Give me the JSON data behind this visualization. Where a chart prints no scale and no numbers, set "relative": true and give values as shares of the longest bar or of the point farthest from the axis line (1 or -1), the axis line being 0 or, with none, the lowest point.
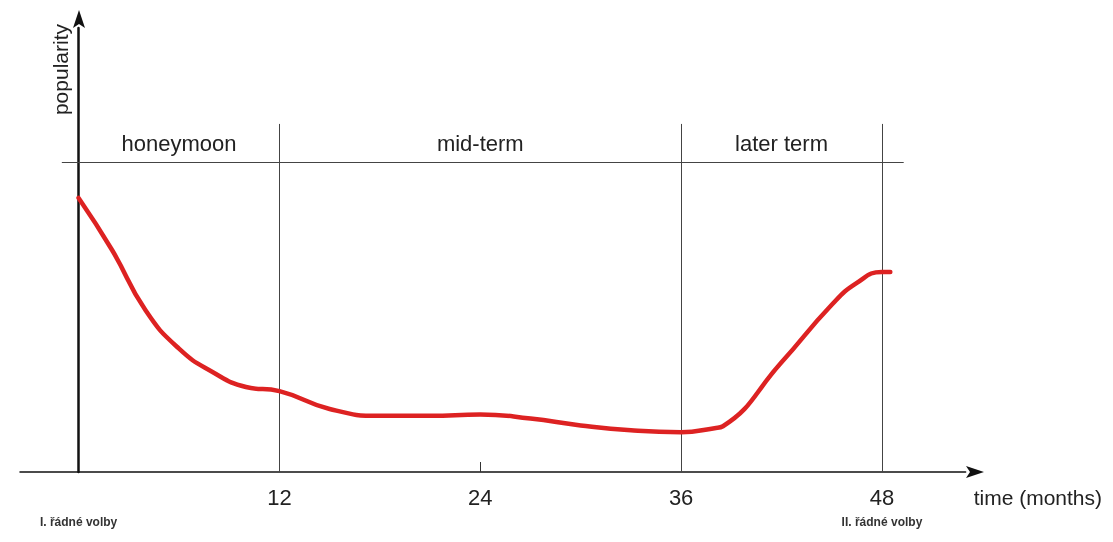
{
  "chart_data": {
    "type": "line",
    "relative": true,
    "xlabel": "time (months)",
    "ylabel": "popularity",
    "xlim": [
      -3.5,
      53
    ],
    "xticks": [
      12,
      24,
      36,
      48
    ],
    "series": [
      {
        "color": "#dd2222",
        "x": [
          0,
          2,
          4,
          6,
          8,
          10,
          12,
          15,
          18,
          21,
          24,
          27,
          30,
          33,
          36,
          38,
          38.5,
          42,
          45,
          46.5,
          48,
          48.5
        ],
        "values": [
          1.0,
          0.81,
          0.59,
          0.45,
          0.365,
          0.31,
          0.295,
          0.23,
          0.205,
          0.205,
          0.21,
          0.195,
          0.17,
          0.152,
          0.145,
          0.16,
          0.167,
          0.4,
          0.61,
          0.69,
          0.73,
          0.73
        ]
      }
    ],
    "ref_lines": [
      {
        "axis": "x",
        "value": 12,
        "color": "#444444"
      },
      {
        "axis": "x",
        "value": 36,
        "color": "#444444"
      },
      {
        "axis": "x",
        "value": 48,
        "color": "#444444"
      },
      {
        "axis": "y",
        "value": 1.13,
        "color": "#444444"
      }
    ],
    "annotations": [
      "honeymoon",
      "mid-term",
      "later term",
      "I. řádné volby",
      "II. řádné volby"
    ],
    "grid": false,
    "marker": "none",
    "line_style": "solid"
  }
}
